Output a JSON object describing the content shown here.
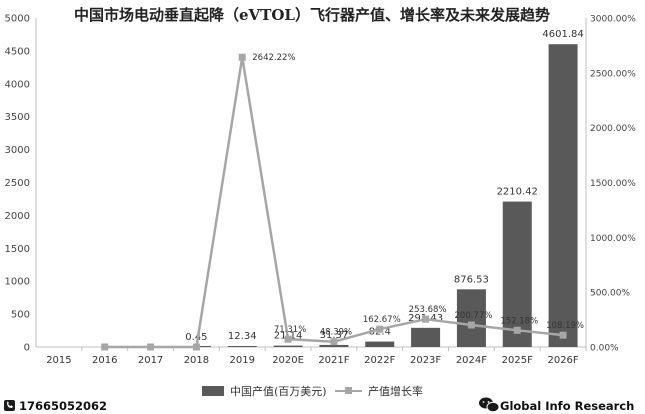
{
  "chart_data": {
    "type": "bar",
    "title": "中国市场电动垂直起降（eVTOL）飞行器产值、增长率及未来发展趋势",
    "categories": [
      "2015",
      "2016",
      "2017",
      "2018",
      "2019",
      "2020E",
      "2021F",
      "2022F",
      "2023F",
      "2024F",
      "2025F",
      "2026F"
    ],
    "series": [
      {
        "name": "中国产值(百万美元)",
        "type": "bar",
        "axis": "left",
        "values": [
          0,
          0,
          0,
          0.45,
          12.34,
          21.14,
          31.37,
          82.4,
          291.43,
          876.53,
          2210.42,
          4601.84
        ],
        "labels": [
          "",
          "",
          "",
          "0.45",
          "12.34",
          "21.14",
          "31.37",
          "82.4",
          "291.43",
          "876.53",
          "2210.42",
          "4601.84"
        ],
        "color": "#595959"
      },
      {
        "name": "产值增长率",
        "type": "line",
        "axis": "right",
        "values": [
          null,
          0,
          0,
          0,
          2642.22,
          71.31,
          48.39,
          162.67,
          253.68,
          200.77,
          152.18,
          108.19
        ],
        "labels": [
          "",
          "",
          "",
          "",
          "2642.22%",
          "71.31%",
          "48.39%",
          "162.67%",
          "253.68%",
          "200.77%",
          "152.18%",
          "108.19%"
        ],
        "color": "#a6a6a6"
      }
    ],
    "y_left": {
      "min": 0,
      "max": 5000,
      "ticks": [
        "0",
        "500",
        "1000",
        "1500",
        "2000",
        "2500",
        "3000",
        "3500",
        "4000",
        "4500",
        "5000"
      ]
    },
    "y_right": {
      "min": 0,
      "max": 3000,
      "ticks": [
        "0.00%",
        "500.00%",
        "1000.00%",
        "1500.00%",
        "2000.00%",
        "2500.00%",
        "3000.00%"
      ]
    },
    "legend_position": "bottom",
    "grid": false
  },
  "footer": {
    "phone": "17665052062",
    "brand": "Global Info Research",
    "phone_icon": "phone-icon",
    "brand_icon": "wechat-icon"
  }
}
